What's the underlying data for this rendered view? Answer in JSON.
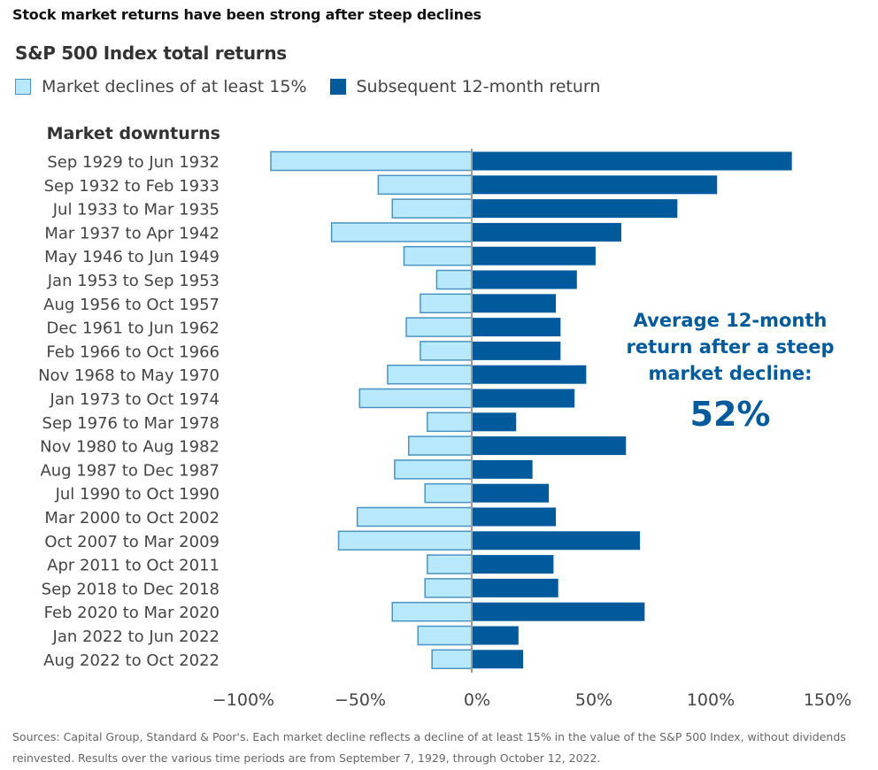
{
  "title": "Stock market returns have been strong after steep declines",
  "subtitle": "S&P 500 Index total returns",
  "legend": {
    "decline_label": "Market declines of at least 15%",
    "return_label": "Subsequent 12-month return"
  },
  "colors": {
    "decline_fill": "#b8e8fb",
    "decline_border": "#4a93c2",
    "return_fill": "#005a9c",
    "zero_line": "#9a9a9a",
    "annotation": "#005a9c"
  },
  "annotation": {
    "line1": "Average 12-month",
    "line2": "return after a steep",
    "line3": "market decline:",
    "value": "52%"
  },
  "source": "Sources: Capital Group, Standard & Poor's. Each market decline reflects a decline of at least 15% in the value of the S&P 500 Index, without dividends reinvested. Results over the various time periods are from September 7, 1929, through October 12, 2022.",
  "chart_data": {
    "type": "bar",
    "orientation": "horizontal",
    "title": "S&P 500 Index total returns",
    "ylabel": "Market downturns",
    "xlabel": "",
    "xlim": [
      -100,
      150
    ],
    "x_ticks": [
      -100,
      -50,
      0,
      50,
      100,
      150
    ],
    "x_tick_labels": [
      "−100%",
      "−50%",
      "0%",
      "50%",
      "100%",
      "150%"
    ],
    "grid": false,
    "legend_position": "top-left",
    "categories": [
      "Sep 1929 to Jun 1932",
      "Sep 1932 to Feb 1933",
      "Jul 1933 to Mar 1935",
      "Mar 1937 to Apr 1942",
      "May 1946 to Jun 1949",
      "Jan 1953 to Sep 1953",
      "Aug 1956 to Oct 1957",
      "Dec 1961 to Jun 1962",
      "Feb 1966 to Oct 1966",
      "Nov 1968 to May 1970",
      "Jan 1973 to Oct 1974",
      "Sep 1976 to Mar 1978",
      "Nov 1980 to Aug 1982",
      "Aug 1987 to Dec 1987",
      "Jul 1990 to Oct 1990",
      "Mar 2000 to Oct 2002",
      "Oct 2007 to Mar 2009",
      "Apr 2011 to Oct 2011",
      "Sep 2018 to Dec 2018",
      "Feb 2020 to Mar 2020",
      "Jan 2022 to Jun 2022",
      "Aug 2022 to Oct 2022"
    ],
    "series": [
      {
        "name": "Market declines of at least 15%",
        "values": [
          -86,
          -40,
          -34,
          -60,
          -29,
          -15,
          -22,
          -28,
          -22,
          -36,
          -48,
          -19,
          -27,
          -33,
          -20,
          -49,
          -57,
          -19,
          -20,
          -34,
          -23,
          -17
        ]
      },
      {
        "name": "Subsequent 12-month return",
        "values": [
          137,
          105,
          88,
          64,
          53,
          45,
          36,
          38,
          38,
          49,
          44,
          19,
          66,
          26,
          33,
          36,
          72,
          35,
          37,
          74,
          20,
          22
        ]
      }
    ],
    "average_subsequent_return": "52%"
  }
}
